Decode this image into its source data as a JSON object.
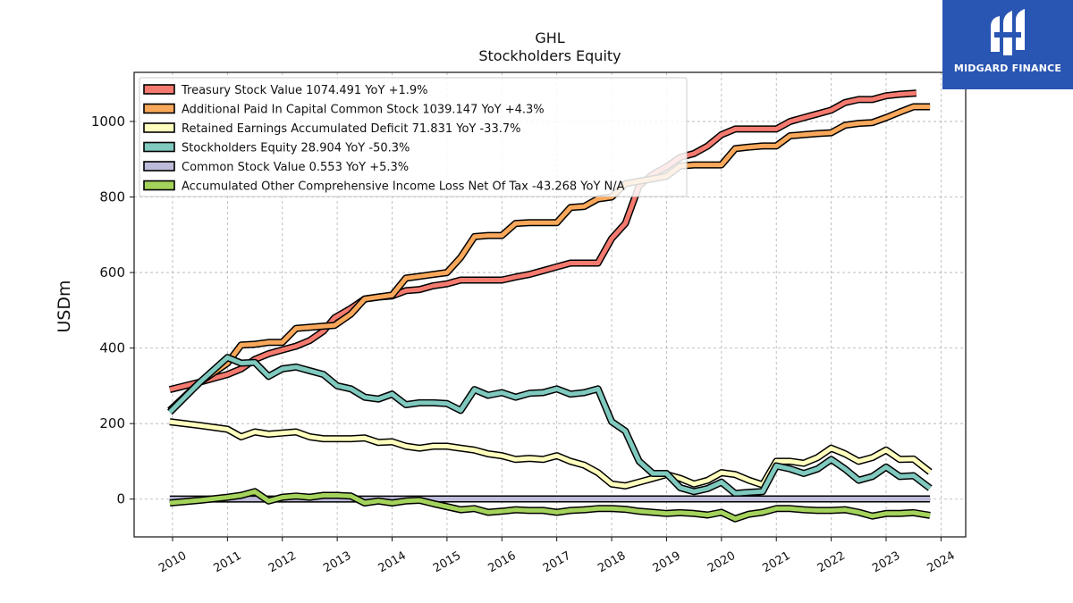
{
  "brand": {
    "name": "MIDGARD FINANCE",
    "logo_icon": "midgard-logo-icon"
  },
  "chart_data": {
    "type": "line",
    "title": "GHL",
    "subtitle": "Stockholders  Equity",
    "ylabel": "USDm",
    "xlabel": "",
    "xlim": [
      2009.3,
      2024.45
    ],
    "ylim": [
      -100,
      1130
    ],
    "yticks": [
      0,
      200,
      400,
      600,
      800,
      1000
    ],
    "xticks": [
      2010,
      2011,
      2012,
      2013,
      2014,
      2015,
      2016,
      2017,
      2018,
      2019,
      2020,
      2021,
      2022,
      2023,
      2024
    ],
    "grid": true,
    "legend_position": "top-left",
    "series": [
      {
        "name": "Treasury Stock Value",
        "legend": "Treasury Stock Value  1074.491 YoY +1.9%",
        "color": "#f47a6f",
        "points": [
          [
            2009.95,
            290
          ],
          [
            2010.5,
            310
          ],
          [
            2011.0,
            330
          ],
          [
            2011.25,
            345
          ],
          [
            2011.5,
            370
          ],
          [
            2011.75,
            385
          ],
          [
            2012.0,
            395
          ],
          [
            2012.25,
            405
          ],
          [
            2012.5,
            420
          ],
          [
            2012.75,
            445
          ],
          [
            2012.95,
            480
          ],
          [
            2013.25,
            505
          ],
          [
            2013.5,
            530
          ],
          [
            2013.75,
            535
          ],
          [
            2014.0,
            538
          ],
          [
            2014.25,
            552
          ],
          [
            2014.5,
            555
          ],
          [
            2014.75,
            565
          ],
          [
            2015.0,
            570
          ],
          [
            2015.25,
            580
          ],
          [
            2015.5,
            580
          ],
          [
            2015.75,
            580
          ],
          [
            2016.0,
            580
          ],
          [
            2016.25,
            588
          ],
          [
            2016.5,
            595
          ],
          [
            2016.75,
            605
          ],
          [
            2017.0,
            615
          ],
          [
            2017.25,
            625
          ],
          [
            2017.5,
            625
          ],
          [
            2017.75,
            625
          ],
          [
            2018.0,
            690
          ],
          [
            2018.25,
            730
          ],
          [
            2018.5,
            830
          ],
          [
            2018.75,
            860
          ],
          [
            2019.0,
            880
          ],
          [
            2019.25,
            905
          ],
          [
            2019.5,
            915
          ],
          [
            2019.75,
            935
          ],
          [
            2020.0,
            965
          ],
          [
            2020.25,
            980
          ],
          [
            2020.5,
            980
          ],
          [
            2020.75,
            980
          ],
          [
            2021.0,
            980
          ],
          [
            2021.25,
            1000
          ],
          [
            2021.5,
            1010
          ],
          [
            2021.75,
            1020
          ],
          [
            2022.0,
            1030
          ],
          [
            2022.25,
            1050
          ],
          [
            2022.5,
            1058
          ],
          [
            2022.75,
            1058
          ],
          [
            2023.0,
            1068
          ],
          [
            2023.25,
            1072
          ],
          [
            2023.55,
            1075
          ]
        ]
      },
      {
        "name": "Additional Paid In Capital Common Stock",
        "legend": "Additional Paid In Capital Common Stock  1039.147 YoY +4.3%",
        "color": "#f9a85b",
        "points": [
          [
            2009.95,
            235
          ],
          [
            2010.5,
            310
          ],
          [
            2011.0,
            360
          ],
          [
            2011.25,
            408
          ],
          [
            2011.5,
            410
          ],
          [
            2011.75,
            415
          ],
          [
            2012.0,
            415
          ],
          [
            2012.25,
            452
          ],
          [
            2012.5,
            455
          ],
          [
            2012.75,
            458
          ],
          [
            2012.95,
            460
          ],
          [
            2013.25,
            490
          ],
          [
            2013.5,
            530
          ],
          [
            2013.75,
            535
          ],
          [
            2014.0,
            540
          ],
          [
            2014.25,
            585
          ],
          [
            2014.5,
            590
          ],
          [
            2014.75,
            595
          ],
          [
            2015.0,
            600
          ],
          [
            2015.25,
            640
          ],
          [
            2015.5,
            695
          ],
          [
            2015.75,
            698
          ],
          [
            2016.0,
            698
          ],
          [
            2016.25,
            730
          ],
          [
            2016.5,
            732
          ],
          [
            2016.75,
            732
          ],
          [
            2017.0,
            732
          ],
          [
            2017.25,
            772
          ],
          [
            2017.5,
            775
          ],
          [
            2017.75,
            795
          ],
          [
            2018.0,
            800
          ],
          [
            2018.25,
            835
          ],
          [
            2018.5,
            842
          ],
          [
            2018.75,
            848
          ],
          [
            2019.0,
            855
          ],
          [
            2019.25,
            882
          ],
          [
            2019.5,
            885
          ],
          [
            2019.75,
            885
          ],
          [
            2020.0,
            885
          ],
          [
            2020.25,
            928
          ],
          [
            2020.5,
            932
          ],
          [
            2020.75,
            935
          ],
          [
            2021.0,
            935
          ],
          [
            2021.25,
            962
          ],
          [
            2021.5,
            965
          ],
          [
            2021.75,
            968
          ],
          [
            2022.0,
            970
          ],
          [
            2022.25,
            990
          ],
          [
            2022.5,
            995
          ],
          [
            2022.75,
            997
          ],
          [
            2023.0,
            1010
          ],
          [
            2023.25,
            1025
          ],
          [
            2023.5,
            1039
          ],
          [
            2023.8,
            1039
          ]
        ]
      },
      {
        "name": "Retained Earnings Accumulated Deficit",
        "legend": "Retained Earnings Accumulated Deficit  71.831 YoY -33.7%",
        "color": "#ffffbe",
        "points": [
          [
            2009.95,
            205
          ],
          [
            2010.5,
            195
          ],
          [
            2011.0,
            185
          ],
          [
            2011.25,
            165
          ],
          [
            2011.5,
            178
          ],
          [
            2011.75,
            172
          ],
          [
            2012.0,
            175
          ],
          [
            2012.25,
            178
          ],
          [
            2012.5,
            165
          ],
          [
            2012.75,
            160
          ],
          [
            2013.0,
            160
          ],
          [
            2013.25,
            160
          ],
          [
            2013.5,
            162
          ],
          [
            2013.75,
            150
          ],
          [
            2014.0,
            152
          ],
          [
            2014.25,
            140
          ],
          [
            2014.5,
            135
          ],
          [
            2014.75,
            140
          ],
          [
            2015.0,
            140
          ],
          [
            2015.25,
            135
          ],
          [
            2015.5,
            130
          ],
          [
            2015.75,
            120
          ],
          [
            2016.0,
            115
          ],
          [
            2016.25,
            105
          ],
          [
            2016.5,
            108
          ],
          [
            2016.75,
            105
          ],
          [
            2017.0,
            115
          ],
          [
            2017.25,
            100
          ],
          [
            2017.5,
            90
          ],
          [
            2017.75,
            70
          ],
          [
            2018.0,
            40
          ],
          [
            2018.25,
            35
          ],
          [
            2018.5,
            45
          ],
          [
            2018.75,
            55
          ],
          [
            2019.0,
            65
          ],
          [
            2019.25,
            55
          ],
          [
            2019.5,
            40
          ],
          [
            2019.75,
            50
          ],
          [
            2020.0,
            70
          ],
          [
            2020.25,
            65
          ],
          [
            2020.5,
            50
          ],
          [
            2020.75,
            38
          ],
          [
            2021.0,
            100
          ],
          [
            2021.25,
            100
          ],
          [
            2021.5,
            95
          ],
          [
            2021.75,
            110
          ],
          [
            2022.0,
            135
          ],
          [
            2022.25,
            120
          ],
          [
            2022.5,
            100
          ],
          [
            2022.75,
            110
          ],
          [
            2023.0,
            130
          ],
          [
            2023.25,
            105
          ],
          [
            2023.5,
            106
          ],
          [
            2023.8,
            72
          ]
        ]
      },
      {
        "name": "Stockholders Equity",
        "legend": "Stockholders Equity  28.904 YoY -50.3%",
        "color": "#7fc9be",
        "points": [
          [
            2009.95,
            230
          ],
          [
            2010.5,
            310
          ],
          [
            2011.0,
            375
          ],
          [
            2011.25,
            360
          ],
          [
            2011.5,
            362
          ],
          [
            2011.75,
            325
          ],
          [
            2012.0,
            345
          ],
          [
            2012.25,
            350
          ],
          [
            2012.5,
            340
          ],
          [
            2012.75,
            330
          ],
          [
            2013.0,
            300
          ],
          [
            2013.25,
            292
          ],
          [
            2013.5,
            270
          ],
          [
            2013.75,
            265
          ],
          [
            2014.0,
            278
          ],
          [
            2014.25,
            250
          ],
          [
            2014.5,
            255
          ],
          [
            2014.75,
            255
          ],
          [
            2015.0,
            253
          ],
          [
            2015.25,
            235
          ],
          [
            2015.5,
            290
          ],
          [
            2015.75,
            275
          ],
          [
            2016.0,
            282
          ],
          [
            2016.25,
            270
          ],
          [
            2016.5,
            280
          ],
          [
            2016.75,
            282
          ],
          [
            2017.0,
            292
          ],
          [
            2017.25,
            278
          ],
          [
            2017.5,
            282
          ],
          [
            2017.75,
            292
          ],
          [
            2018.0,
            205
          ],
          [
            2018.25,
            180
          ],
          [
            2018.5,
            100
          ],
          [
            2018.75,
            68
          ],
          [
            2019.0,
            68
          ],
          [
            2019.25,
            30
          ],
          [
            2019.5,
            20
          ],
          [
            2019.75,
            28
          ],
          [
            2020.0,
            45
          ],
          [
            2020.25,
            15
          ],
          [
            2020.5,
            18
          ],
          [
            2020.75,
            20
          ],
          [
            2021.0,
            88
          ],
          [
            2021.25,
            80
          ],
          [
            2021.5,
            68
          ],
          [
            2021.75,
            80
          ],
          [
            2022.0,
            105
          ],
          [
            2022.25,
            80
          ],
          [
            2022.5,
            50
          ],
          [
            2022.75,
            60
          ],
          [
            2023.0,
            85
          ],
          [
            2023.25,
            60
          ],
          [
            2023.5,
            62
          ],
          [
            2023.8,
            29
          ]
        ]
      },
      {
        "name": "Common Stock Value",
        "legend": "Common Stock Value  0.553 YoY +5.3%",
        "color": "#bcbbd9",
        "points": [
          [
            2009.95,
            0.4
          ],
          [
            2011.0,
            0.4
          ],
          [
            2012.0,
            0.4
          ],
          [
            2013.0,
            0.4
          ],
          [
            2014.0,
            0.4
          ],
          [
            2015.0,
            0.5
          ],
          [
            2016.0,
            0.5
          ],
          [
            2017.0,
            0.5
          ],
          [
            2018.0,
            0.5
          ],
          [
            2019.0,
            0.5
          ],
          [
            2020.0,
            0.5
          ],
          [
            2021.0,
            0.5
          ],
          [
            2022.0,
            0.5
          ],
          [
            2023.0,
            0.53
          ],
          [
            2023.8,
            0.553
          ]
        ]
      },
      {
        "name": "Accumulated Other Comprehensive Income Loss Net Of Tax",
        "legend": "Accumulated Other Comprehensive Income Loss Net Of Tax  -43.268 YoY N/A",
        "color": "#a4d35c",
        "points": [
          [
            2009.95,
            -10
          ],
          [
            2010.5,
            -3
          ],
          [
            2011.0,
            5
          ],
          [
            2011.25,
            10
          ],
          [
            2011.5,
            20
          ],
          [
            2011.75,
            -5
          ],
          [
            2012.0,
            5
          ],
          [
            2012.25,
            8
          ],
          [
            2012.5,
            5
          ],
          [
            2012.75,
            10
          ],
          [
            2013.0,
            10
          ],
          [
            2013.25,
            8
          ],
          [
            2013.5,
            -10
          ],
          [
            2013.75,
            -5
          ],
          [
            2014.0,
            -10
          ],
          [
            2014.25,
            -5
          ],
          [
            2014.5,
            -3
          ],
          [
            2014.75,
            -12
          ],
          [
            2015.0,
            -20
          ],
          [
            2015.25,
            -28
          ],
          [
            2015.5,
            -25
          ],
          [
            2015.75,
            -35
          ],
          [
            2016.0,
            -32
          ],
          [
            2016.25,
            -28
          ],
          [
            2016.5,
            -30
          ],
          [
            2016.75,
            -30
          ],
          [
            2017.0,
            -35
          ],
          [
            2017.25,
            -30
          ],
          [
            2017.5,
            -28
          ],
          [
            2017.75,
            -25
          ],
          [
            2018.0,
            -25
          ],
          [
            2018.25,
            -27
          ],
          [
            2018.5,
            -32
          ],
          [
            2018.75,
            -35
          ],
          [
            2019.0,
            -38
          ],
          [
            2019.25,
            -36
          ],
          [
            2019.5,
            -38
          ],
          [
            2019.75,
            -42
          ],
          [
            2020.0,
            -35
          ],
          [
            2020.25,
            -52
          ],
          [
            2020.5,
            -40
          ],
          [
            2020.75,
            -35
          ],
          [
            2021.0,
            -25
          ],
          [
            2021.25,
            -25
          ],
          [
            2021.5,
            -28
          ],
          [
            2021.75,
            -30
          ],
          [
            2022.0,
            -30
          ],
          [
            2022.25,
            -28
          ],
          [
            2022.5,
            -35
          ],
          [
            2022.75,
            -45
          ],
          [
            2023.0,
            -38
          ],
          [
            2023.25,
            -38
          ],
          [
            2023.5,
            -36
          ],
          [
            2023.8,
            -43
          ]
        ]
      }
    ]
  }
}
